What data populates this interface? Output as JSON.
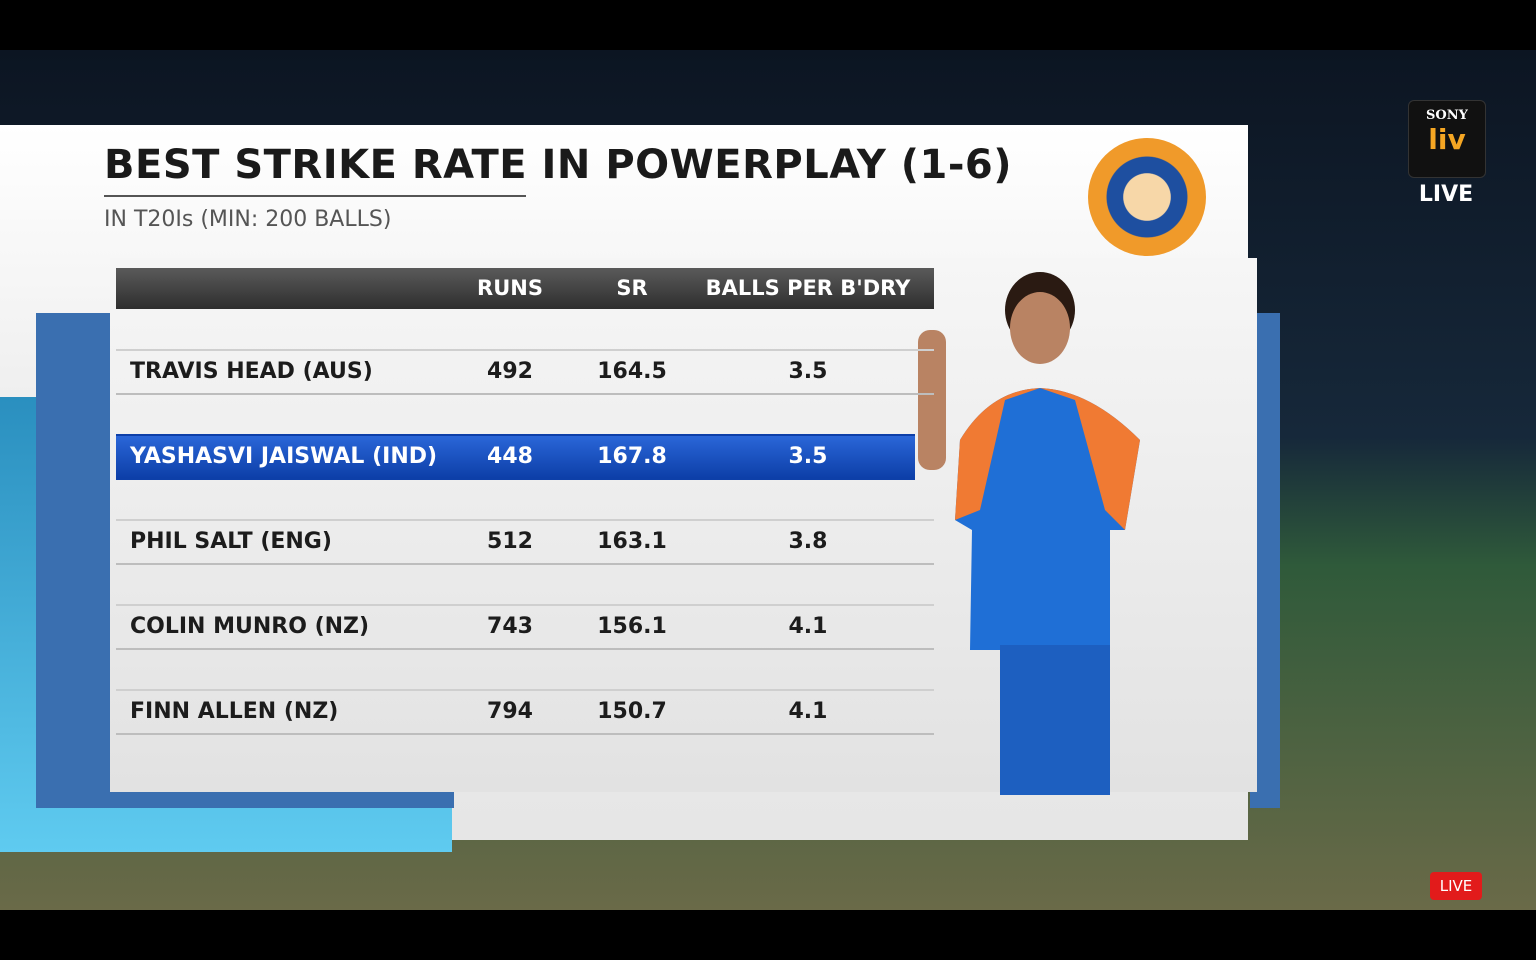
{
  "header": {
    "title": "BEST STRIKE RATE IN POWERPLAY (1-6)",
    "subtitle": "IN T20Is (MIN: 200 BALLS)"
  },
  "table": {
    "columns": [
      "RUNS",
      "SR",
      "BALLS PER B'DRY"
    ],
    "rows": [
      [
        "TRAVIS HEAD (AUS)",
        492,
        164.5,
        3.5
      ],
      [
        "YASHASVI JAISWAL (IND)",
        448,
        167.8,
        3.5
      ],
      [
        "PHIL SALT (ENG)",
        512,
        163.1,
        3.8
      ],
      [
        "COLIN MUNRO (NZ)",
        743,
        156.1,
        4.1
      ],
      [
        "FINN ALLEN (NZ)",
        794,
        150.7,
        4.1
      ]
    ]
  },
  "branding": {
    "brand": "SONY",
    "logo": "liv",
    "live": "LIVE",
    "live_badge": "LIVE"
  }
}
